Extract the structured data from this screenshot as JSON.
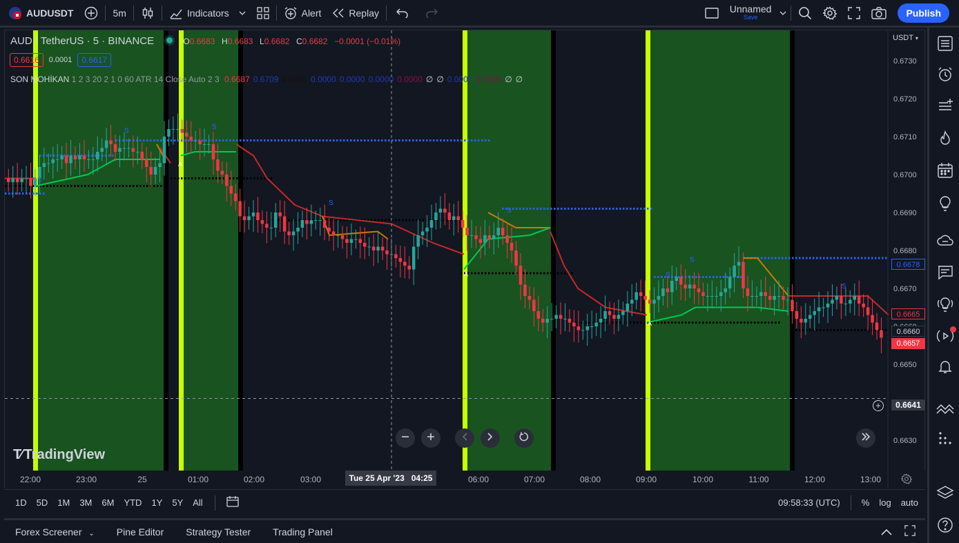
{
  "toolbar": {
    "symbol": "AUDUSDT",
    "interval": "5m",
    "indicators_label": "Indicators",
    "alert_label": "Alert",
    "replay_label": "Replay",
    "layout_name": "Unnamed",
    "layout_save": "Save",
    "publish_label": "Publish"
  },
  "legend": {
    "title": "AUD / TetherUS · 5 · BINANCE",
    "ohlc": {
      "o_label": "O",
      "o": "0.6683",
      "h_label": "H",
      "h": "0.6683",
      "l_label": "L",
      "l": "0.6682",
      "c_label": "C",
      "c": "0.6682",
      "change": "−0.0001 (−0.01%)"
    },
    "bid": "0.6616",
    "spread": "0.0001",
    "ask": "0.6617",
    "indicator_name": "SON MOHİKAN",
    "indicator_params": "1 2 3 20 2 1 0 60 ATR 14 Close Auto 2 3",
    "indicator_values": [
      {
        "text": "0.6687",
        "color": "#f23645"
      },
      {
        "text": "0.6709",
        "color": "#1e3ab0"
      },
      {
        "text": "0.6688",
        "color": "#111111"
      },
      {
        "text": "0.0000",
        "color": "#1e3ab0"
      },
      {
        "text": "0.0000",
        "color": "#1e3ab0"
      },
      {
        "text": "0.0000",
        "color": "#1e3ab0"
      },
      {
        "text": "0.0000",
        "color": "#880e4f"
      },
      {
        "text": "∅",
        "color": "#d1d4dc"
      },
      {
        "text": "∅",
        "color": "#d1d4dc"
      },
      {
        "text": "0.0000",
        "color": "#1e3ab0"
      },
      {
        "text": "0.0000",
        "color": "#880e4f"
      },
      {
        "text": "∅",
        "color": "#d1d4dc"
      },
      {
        "text": "∅",
        "color": "#d1d4dc"
      }
    ]
  },
  "price_axis": {
    "currency": "USDT",
    "ticks": [
      "0.6730",
      "0.6720",
      "0.6710",
      "0.6700",
      "0.6690",
      "0.6680",
      "0.6670",
      "0.6660",
      "0.6650",
      "0.6630"
    ],
    "labels": {
      "blue": "0.6678",
      "red_top": "0.6665",
      "dark": "0.6660",
      "red_bottom": "0.6657",
      "crosshair": "0.6641"
    }
  },
  "time_axis": {
    "ticks": [
      "22:00",
      "23:00",
      "25",
      "01:00",
      "02:00",
      "03:00",
      "06:00",
      "07:00",
      "08:00",
      "09:00",
      "10:00",
      "11:00",
      "12:00",
      "13:00"
    ],
    "crosshair_date": "Tue 25 Apr '23",
    "crosshair_time": "04:25"
  },
  "watermark": "TradingView",
  "markers": {
    "s": "S",
    "a": "A"
  },
  "range_bar": {
    "ranges": [
      "1D",
      "5D",
      "1M",
      "3M",
      "6M",
      "YTD",
      "1Y",
      "5Y",
      "All"
    ],
    "clock": "09:58:33 (UTC)",
    "percent": "%",
    "log": "log",
    "auto": "auto"
  },
  "panels": [
    "Forex Screener",
    "Pine Editor",
    "Strategy Tester",
    "Trading Panel"
  ],
  "colors": {
    "background": "#131722",
    "up": "#26a69a",
    "down": "#f23645",
    "zone_green": "#1b5e20",
    "zone_border": "#c6ff00",
    "accent": "#2962ff"
  },
  "chart_data": {
    "type": "candlestick",
    "symbol": "AUDUSDT",
    "interval": "5m",
    "ylim": [
      0.6622,
      0.6738
    ],
    "x_start": "21:15",
    "x_end": "13:25",
    "close": [
      0.6698,
      0.6699,
      0.6698,
      0.6699,
      0.6699,
      0.6697,
      0.6699,
      0.6702,
      0.6703,
      0.6703,
      0.6704,
      0.6704,
      0.6705,
      0.6703,
      0.6705,
      0.6704,
      0.6705,
      0.6704,
      0.6704,
      0.6704,
      0.6706,
      0.6707,
      0.6709,
      0.6708,
      0.6706,
      0.6707,
      0.6707,
      0.6707,
      0.6706,
      0.6706,
      0.6704,
      0.6702,
      0.67,
      0.6702,
      0.6703,
      0.671,
      0.6712,
      0.6712,
      0.6712,
      0.6711,
      0.671,
      0.6709,
      0.6709,
      0.6708,
      0.6708,
      0.6708,
      0.6704,
      0.6701,
      0.67,
      0.6697,
      0.6695,
      0.6693,
      0.6689,
      0.6688,
      0.6689,
      0.669,
      0.6688,
      0.6687,
      0.6686,
      0.6686,
      0.669,
      0.6689,
      0.6685,
      0.6684,
      0.6685,
      0.6686,
      0.6688,
      0.6687,
      0.6688,
      0.6688,
      0.6688,
      0.6686,
      0.6685,
      0.6684,
      0.6684,
      0.6683,
      0.6682,
      0.6683,
      0.6683,
      0.6682,
      0.6681,
      0.6681,
      0.668,
      0.6681,
      0.668,
      0.6679,
      0.6679,
      0.6678,
      0.6677,
      0.6676,
      0.6675,
      0.6681,
      0.6684,
      0.6685,
      0.6686,
      0.6688,
      0.669,
      0.6691,
      0.669,
      0.6688,
      0.6689,
      0.6688,
      0.6686,
      0.6684,
      0.6684,
      0.6683,
      0.6682,
      0.6684,
      0.6683,
      0.6684,
      0.6686,
      0.6684,
      0.6682,
      0.668,
      0.6676,
      0.6671,
      0.6668,
      0.6667,
      0.6664,
      0.6662,
      0.6661,
      0.6662,
      0.6662,
      0.6663,
      0.6662,
      0.6662,
      0.6661,
      0.666,
      0.6659,
      0.6659,
      0.666,
      0.666,
      0.6661,
      0.6662,
      0.6664,
      0.6663,
      0.6662,
      0.6663,
      0.6664,
      0.6666,
      0.6667,
      0.6669,
      0.6668,
      0.6667,
      0.6666,
      0.6667,
      0.6668,
      0.667,
      0.6669,
      0.6672,
      0.6673,
      0.6671,
      0.667,
      0.6671,
      0.667,
      0.6669,
      0.6668,
      0.6668,
      0.6668,
      0.6668,
      0.6669,
      0.667,
      0.6673,
      0.6676,
      0.6677,
      0.667,
      0.6668,
      0.6668,
      0.6668,
      0.6669,
      0.6668,
      0.6667,
      0.6668,
      0.6668,
      0.6667,
      0.6667,
      0.6664,
      0.6662,
      0.6661,
      0.6662,
      0.6663,
      0.6664,
      0.6665,
      0.6665,
      0.6666,
      0.6667,
      0.6668,
      0.6666,
      0.6666,
      0.6667,
      0.6668,
      0.6666,
      0.6665,
      0.6663,
      0.6661,
      0.6659,
      0.6657
    ]
  }
}
